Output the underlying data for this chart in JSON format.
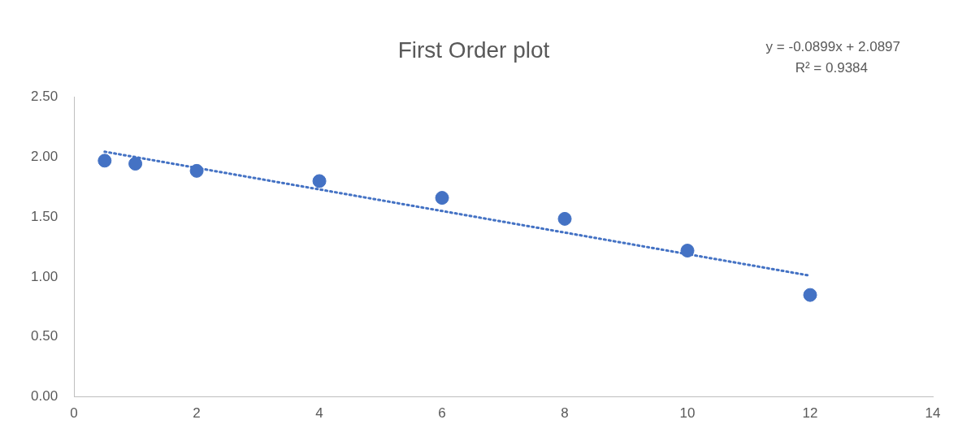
{
  "chart_data": {
    "type": "scatter",
    "title": "First Order plot",
    "annotations": [
      "y = -0.0899x + 2.0897",
      "R² = 0.9384"
    ],
    "series": [
      {
        "type": "scatter",
        "color": "#4472c4",
        "marker": "circle",
        "x": [
          0.5,
          1,
          2,
          4,
          6,
          8,
          10,
          12
        ],
        "values": [
          1.97,
          1.945,
          1.885,
          1.8,
          1.66,
          1.485,
          1.22,
          0.85
        ]
      },
      {
        "type": "line",
        "color": "#4472c4",
        "line_style": "dotted",
        "marker": "none",
        "x": [
          0.5,
          12
        ],
        "values": [
          2.045,
          1.011
        ]
      }
    ],
    "xlim": [
      0,
      14
    ],
    "xticks": [
      0,
      2,
      4,
      6,
      8,
      10,
      12,
      14
    ],
    "ylim": [
      0,
      2.5
    ],
    "yticks": [
      {
        "value": 0,
        "label": "0.00"
      },
      {
        "value": 0.5,
        "label": "0.50"
      },
      {
        "value": 1,
        "label": "1.00"
      },
      {
        "value": 1.5,
        "label": "1.50"
      },
      {
        "value": 2,
        "label": "2.00"
      },
      {
        "value": 2.5,
        "label": "2.50"
      }
    ],
    "grid": false,
    "legend": false
  }
}
